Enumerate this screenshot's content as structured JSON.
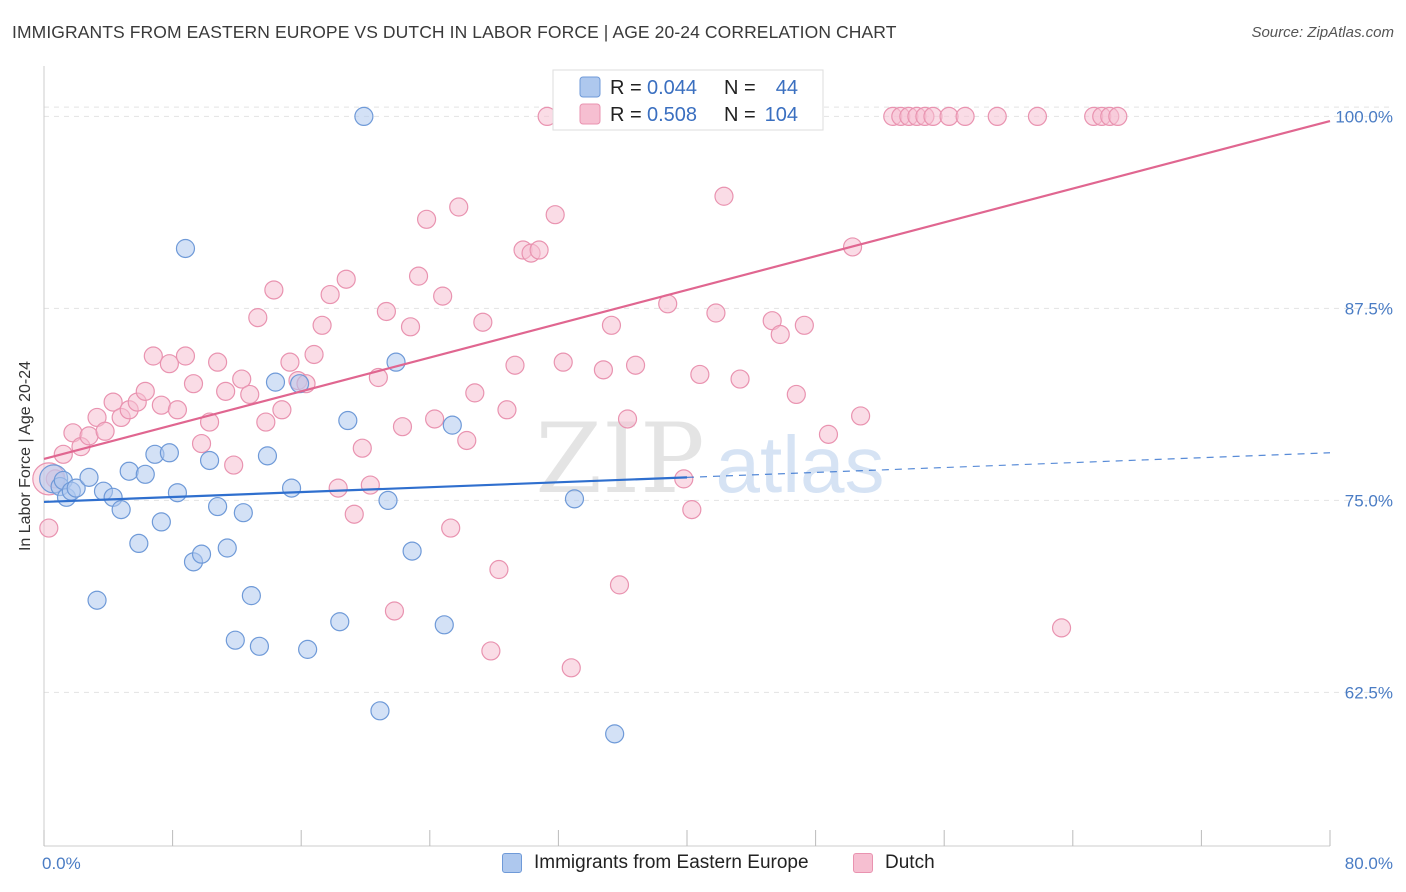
{
  "header": {
    "title": "IMMIGRANTS FROM EASTERN EUROPE VS DUTCH IN LABOR FORCE | AGE 20-24 CORRELATION CHART",
    "source": "Source: ZipAtlas.com"
  },
  "watermark": {
    "zip": "ZIP",
    "atlas": "atlas"
  },
  "legend_box": {
    "rows": [
      {
        "r_label": "R =",
        "r_value": "0.044",
        "n_label": "N =",
        "n_value": "44"
      },
      {
        "r_label": "R =",
        "r_value": "0.508",
        "n_label": "N =",
        "n_value": "104"
      }
    ]
  },
  "colors": {
    "blue_fill": "#aec8ee",
    "blue_stroke": "#6f9ad8",
    "blue_line": "#2f6fce",
    "pink_fill": "#f6bfd1",
    "pink_stroke": "#e993b0",
    "pink_line": "#e06690",
    "grid": "#e3e3e3",
    "tick_text": "#4a7cc4"
  },
  "chart_data": {
    "type": "scatter",
    "title": "IMMIGRANTS FROM EASTERN EUROPE VS DUTCH IN LABOR FORCE | AGE 20-24 CORRELATION CHART",
    "xlabel": "",
    "ylabel": "In Labor Force | Age 20-24",
    "xlim": [
      0,
      80
    ],
    "ylim": [
      52.5,
      102.5
    ],
    "x_tick_labels": [
      "0.0%",
      "80.0%"
    ],
    "y_ticks": [
      62.5,
      75.0,
      87.5,
      100.0
    ],
    "y_tick_labels": [
      "62.5%",
      "75.0%",
      "87.5%",
      "100.0%"
    ],
    "legend_position": "top-center",
    "series": [
      {
        "name": "Immigrants from Eastern Europe",
        "R": 0.044,
        "N": 44,
        "trend": {
          "x_start": 0,
          "y_start": 74.9,
          "x_end": 40,
          "y_end": 76.5,
          "dashed_to_x": 80,
          "dashed_to_y": 78.1
        },
        "points": [
          [
            0.6,
            76.4
          ],
          [
            1.0,
            75.9
          ],
          [
            1.2,
            76.3
          ],
          [
            1.4,
            75.2
          ],
          [
            1.7,
            75.6
          ],
          [
            2.0,
            75.8
          ],
          [
            2.8,
            76.5
          ],
          [
            3.3,
            68.5
          ],
          [
            3.7,
            75.6
          ],
          [
            4.3,
            75.2
          ],
          [
            4.8,
            74.4
          ],
          [
            5.3,
            76.9
          ],
          [
            5.9,
            72.2
          ],
          [
            6.3,
            76.7
          ],
          [
            6.9,
            78.0
          ],
          [
            7.3,
            73.6
          ],
          [
            7.8,
            78.1
          ],
          [
            8.3,
            75.5
          ],
          [
            8.8,
            91.4
          ],
          [
            9.3,
            71.0
          ],
          [
            9.8,
            71.5
          ],
          [
            10.3,
            77.6
          ],
          [
            10.8,
            74.6
          ],
          [
            11.4,
            71.9
          ],
          [
            11.9,
            65.9
          ],
          [
            12.4,
            74.2
          ],
          [
            12.9,
            68.8
          ],
          [
            13.4,
            65.5
          ],
          [
            13.9,
            77.9
          ],
          [
            14.4,
            82.7
          ],
          [
            15.4,
            75.8
          ],
          [
            15.9,
            82.6
          ],
          [
            16.4,
            65.3
          ],
          [
            18.4,
            67.1
          ],
          [
            18.9,
            80.2
          ],
          [
            19.9,
            100.0
          ],
          [
            20.9,
            61.3
          ],
          [
            21.4,
            75.0
          ],
          [
            21.9,
            84.0
          ],
          [
            22.9,
            71.7
          ],
          [
            24.9,
            66.9
          ],
          [
            25.4,
            79.9
          ],
          [
            33.0,
            75.1
          ],
          [
            35.5,
            59.8
          ]
        ],
        "sizes": {
          "0.6,76.4": "large"
        }
      },
      {
        "name": "Dutch",
        "R": 0.508,
        "N": 104,
        "trend": {
          "x_start": 0,
          "y_start": 77.7,
          "x_end": 80,
          "y_end": 99.7
        },
        "points": [
          [
            0.3,
            73.2
          ],
          [
            0.7,
            76.4
          ],
          [
            1.2,
            78.0
          ],
          [
            1.8,
            79.4
          ],
          [
            2.3,
            78.5
          ],
          [
            2.8,
            79.2
          ],
          [
            3.3,
            80.4
          ],
          [
            3.8,
            79.5
          ],
          [
            4.3,
            81.4
          ],
          [
            4.8,
            80.4
          ],
          [
            5.3,
            80.9
          ],
          [
            5.8,
            81.4
          ],
          [
            6.3,
            82.1
          ],
          [
            6.8,
            84.4
          ],
          [
            7.3,
            81.2
          ],
          [
            7.8,
            83.9
          ],
          [
            8.3,
            80.9
          ],
          [
            8.8,
            84.4
          ],
          [
            9.3,
            82.6
          ],
          [
            9.8,
            78.7
          ],
          [
            10.3,
            80.1
          ],
          [
            10.8,
            84.0
          ],
          [
            11.3,
            82.1
          ],
          [
            11.8,
            77.3
          ],
          [
            12.3,
            82.9
          ],
          [
            12.8,
            81.9
          ],
          [
            13.3,
            86.9
          ],
          [
            13.8,
            80.1
          ],
          [
            14.3,
            88.7
          ],
          [
            14.8,
            80.9
          ],
          [
            15.3,
            84.0
          ],
          [
            15.8,
            82.8
          ],
          [
            16.3,
            82.6
          ],
          [
            16.8,
            84.5
          ],
          [
            17.3,
            86.4
          ],
          [
            17.8,
            88.4
          ],
          [
            18.3,
            75.8
          ],
          [
            18.8,
            89.4
          ],
          [
            19.3,
            74.1
          ],
          [
            19.8,
            78.4
          ],
          [
            20.3,
            76.0
          ],
          [
            20.8,
            83.0
          ],
          [
            21.3,
            87.3
          ],
          [
            21.8,
            67.8
          ],
          [
            22.3,
            79.8
          ],
          [
            22.8,
            86.3
          ],
          [
            23.3,
            89.6
          ],
          [
            23.8,
            93.3
          ],
          [
            24.3,
            80.3
          ],
          [
            24.8,
            88.3
          ],
          [
            25.3,
            73.2
          ],
          [
            25.8,
            94.1
          ],
          [
            26.3,
            78.9
          ],
          [
            26.8,
            82.0
          ],
          [
            27.3,
            86.6
          ],
          [
            27.8,
            65.2
          ],
          [
            28.3,
            70.5
          ],
          [
            28.8,
            80.9
          ],
          [
            29.3,
            83.8
          ],
          [
            29.8,
            91.3
          ],
          [
            30.3,
            91.1
          ],
          [
            30.8,
            91.3
          ],
          [
            31.3,
            100.0
          ],
          [
            31.8,
            93.6
          ],
          [
            32.3,
            84.0
          ],
          [
            32.8,
            64.1
          ],
          [
            33.3,
            100.0
          ],
          [
            34.3,
            100.0
          ],
          [
            34.8,
            83.5
          ],
          [
            35.3,
            86.4
          ],
          [
            35.8,
            69.5
          ],
          [
            36.3,
            80.3
          ],
          [
            36.8,
            83.8
          ],
          [
            38.3,
            100.0
          ],
          [
            38.8,
            87.8
          ],
          [
            39.8,
            76.4
          ],
          [
            40.3,
            74.4
          ],
          [
            40.8,
            83.2
          ],
          [
            41.8,
            87.2
          ],
          [
            42.3,
            94.8
          ],
          [
            43.3,
            82.9
          ],
          [
            45.3,
            86.7
          ],
          [
            45.8,
            85.8
          ],
          [
            46.8,
            81.9
          ],
          [
            47.3,
            86.4
          ],
          [
            47.8,
            100.0
          ],
          [
            48.8,
            79.3
          ],
          [
            50.3,
            91.5
          ],
          [
            50.8,
            80.5
          ],
          [
            52.8,
            100.0
          ],
          [
            53.3,
            100.0
          ],
          [
            53.8,
            100.0
          ],
          [
            54.3,
            100.0
          ],
          [
            54.8,
            100.0
          ],
          [
            55.3,
            100.0
          ],
          [
            56.3,
            100.0
          ],
          [
            57.3,
            100.0
          ],
          [
            59.3,
            100.0
          ],
          [
            61.8,
            100.0
          ],
          [
            63.3,
            66.7
          ],
          [
            65.3,
            100.0
          ],
          [
            65.8,
            100.0
          ],
          [
            66.3,
            100.0
          ],
          [
            66.8,
            100.0
          ]
        ]
      }
    ],
    "bottom_legend": [
      "Immigrants from Eastern Europe",
      "Dutch"
    ]
  }
}
